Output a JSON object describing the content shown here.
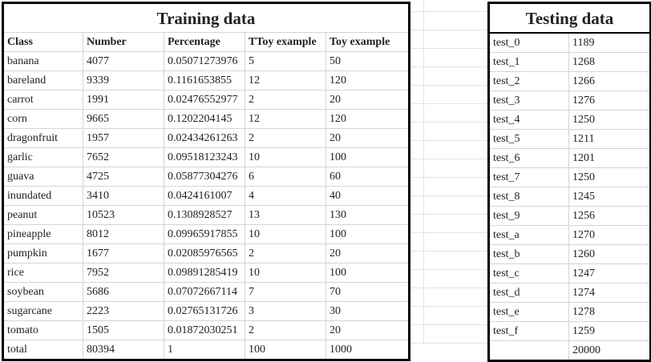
{
  "training": {
    "title": "Training data",
    "headers": [
      "Class",
      "Number",
      "Percentage",
      "TToy example",
      "Toy example"
    ],
    "rows": [
      [
        "banana",
        "4077",
        "0.05071273976",
        "5",
        "50"
      ],
      [
        "bareland",
        "9339",
        "0.1161653855",
        "12",
        "120"
      ],
      [
        "carrot",
        "1991",
        "0.02476552977",
        "2",
        "20"
      ],
      [
        "corn",
        "9665",
        "0.1202204145",
        "12",
        "120"
      ],
      [
        "dragonfruit",
        "1957",
        "0.02434261263",
        "2",
        "20"
      ],
      [
        "garlic",
        "7652",
        "0.09518123243",
        "10",
        "100"
      ],
      [
        "guava",
        "4725",
        "0.05877304276",
        "6",
        "60"
      ],
      [
        "inundated",
        "3410",
        "0.0424161007",
        "4",
        "40"
      ],
      [
        "peanut",
        "10523",
        "0.1308928527",
        "13",
        "130"
      ],
      [
        "pineapple",
        "8012",
        "0.09965917855",
        "10",
        "100"
      ],
      [
        "pumpkin",
        "1677",
        "0.02085976565",
        "2",
        "20"
      ],
      [
        "rice",
        "7952",
        "0.09891285419",
        "10",
        "100"
      ],
      [
        "soybean",
        "5686",
        "0.07072667114",
        "7",
        "70"
      ],
      [
        "sugarcane",
        "2223",
        "0.02765131726",
        "3",
        "30"
      ],
      [
        "tomato",
        "1505",
        "0.01872030251",
        "2",
        "20"
      ],
      [
        "total",
        "80394",
        "1",
        "100",
        "1000"
      ]
    ]
  },
  "testing": {
    "title": "Testing data",
    "rows": [
      [
        "test_0",
        "1189"
      ],
      [
        "test_1",
        "1268"
      ],
      [
        "test_2",
        "1266"
      ],
      [
        "test_3",
        "1276"
      ],
      [
        "test_4",
        "1250"
      ],
      [
        "test_5",
        "1211"
      ],
      [
        "test_6",
        "1201"
      ],
      [
        "test_7",
        "1250"
      ],
      [
        "test_8",
        "1245"
      ],
      [
        "test_9",
        "1256"
      ],
      [
        "test_a",
        "1270"
      ],
      [
        "test_b",
        "1260"
      ],
      [
        "test_c",
        "1247"
      ],
      [
        "test_d",
        "1274"
      ],
      [
        "test_e",
        "1278"
      ],
      [
        "test_f",
        "1259"
      ],
      [
        "",
        "20000"
      ]
    ]
  }
}
